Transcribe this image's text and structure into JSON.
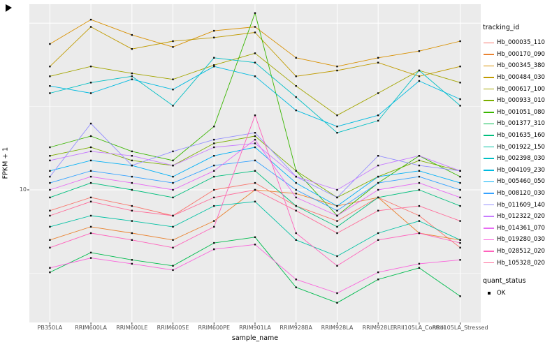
{
  "chart_data": {
    "type": "line",
    "title": "",
    "xlabel": "sample_name",
    "ylabel": "FPKM + 1",
    "yscale": "log10",
    "ylim": [
      1.6,
      130
    ],
    "ytick_values": [
      10
    ],
    "ytick_labels": [
      "10"
    ],
    "grid": {
      "major_y": [
        10,
        100
      ],
      "minor_y": [
        3.1623,
        31.623
      ],
      "color": "#FFFFFF"
    },
    "panel_bg": "#EBEBEB",
    "point_color": "#0d0d0d",
    "x": [
      "PB350LA",
      "RRIM600LA",
      "RRIM600LE",
      "RRIM600SE",
      "RRIM600PE",
      "RRIM901LA",
      "RRIM928BA",
      "RRIM928LA",
      "RRIM928LE",
      "RRII105LA_Control",
      "RRII105LA_Stressed"
    ],
    "series": [
      {
        "name": "Hb_000035_110",
        "color": "#F8766D",
        "values": [
          7.5,
          9,
          8,
          7,
          10,
          11,
          8,
          6.5,
          9,
          7,
          4.5
        ]
      },
      {
        "name": "Hb_000170_090",
        "color": "#EA8331",
        "values": [
          5,
          6,
          5.5,
          5,
          6.5,
          10,
          9.5,
          8,
          9,
          5.5,
          5
        ]
      },
      {
        "name": "Hb_000345_380",
        "color": "#D89000",
        "values": [
          75,
          105,
          85,
          72,
          90,
          95,
          62,
          55,
          62,
          68,
          78
        ]
      },
      {
        "name": "Hb_000484_030",
        "color": "#C09B00",
        "values": [
          55,
          95,
          70,
          78,
          82,
          88,
          48,
          52,
          58,
          48,
          55
        ]
      },
      {
        "name": "Hb_000617_100",
        "color": "#A3A500",
        "values": [
          48,
          55,
          50,
          46,
          56,
          66,
          42,
          28,
          38,
          52,
          44
        ]
      },
      {
        "name": "Hb_000933_010",
        "color": "#7CAE00",
        "values": [
          16,
          18,
          15,
          14,
          19,
          21,
          13,
          9,
          12,
          15,
          13
        ]
      },
      {
        "name": "Hb_001051_080",
        "color": "#39B600",
        "values": [
          18,
          21,
          17,
          15,
          24,
          115,
          13,
          7,
          11,
          16,
          12
        ]
      },
      {
        "name": "Hb_001377_310",
        "color": "#00BB4E",
        "values": [
          3.2,
          4.2,
          3.8,
          3.5,
          4.8,
          5.2,
          2.6,
          2.1,
          2.9,
          3.4,
          2.3
        ]
      },
      {
        "name": "Hb_001635_160",
        "color": "#00BF7D",
        "values": [
          9,
          11,
          10,
          9,
          12,
          13,
          8,
          6,
          9,
          10,
          8
        ]
      },
      {
        "name": "Hb_001922_150",
        "color": "#00C1A3",
        "values": [
          6,
          7,
          6.5,
          6,
          8,
          8.5,
          5,
          4,
          5.5,
          6.5,
          5
        ]
      },
      {
        "name": "Hb_002398_030",
        "color": "#00BFC4",
        "values": [
          38,
          44,
          48,
          32,
          62,
          58,
          36,
          22,
          26,
          52,
          32
        ]
      },
      {
        "name": "Hb_004109_230",
        "color": "#00BAE0",
        "values": [
          42,
          38,
          46,
          40,
          55,
          48,
          30,
          24,
          28,
          45,
          35
        ]
      },
      {
        "name": "Hb_005460_050",
        "color": "#00B0F6",
        "values": [
          13,
          15,
          14,
          12,
          16,
          18,
          11,
          8,
          12,
          13,
          11
        ]
      },
      {
        "name": "Hb_008120_030",
        "color": "#35A2FF",
        "values": [
          11,
          13,
          12,
          11,
          14,
          15,
          10,
          7.5,
          11,
          12,
          10
        ]
      },
      {
        "name": "Hb_011609_140",
        "color": "#9590FF",
        "values": [
          12,
          25,
          14,
          17,
          20,
          22,
          12,
          9,
          16,
          14,
          13
        ]
      },
      {
        "name": "Hb_012322_020",
        "color": "#C77CFF",
        "values": [
          15,
          17,
          16,
          14,
          18,
          19,
          12,
          10,
          14,
          16,
          13
        ]
      },
      {
        "name": "Hb_014361_070",
        "color": "#E76BF3",
        "values": [
          10,
          12,
          11,
          10,
          13,
          20,
          9,
          7,
          10,
          11,
          9
        ]
      },
      {
        "name": "Hb_019280_030",
        "color": "#FA62DB",
        "values": [
          3.4,
          3.9,
          3.6,
          3.3,
          4.4,
          4.7,
          2.9,
          2.4,
          3.2,
          3.6,
          3.8
        ]
      },
      {
        "name": "Hb_028512_020",
        "color": "#FF62BC",
        "values": [
          4.5,
          5.5,
          5,
          4.5,
          6,
          28,
          5.5,
          3.5,
          5,
          5.5,
          4.8
        ]
      },
      {
        "name": "Hb_105328_020",
        "color": "#FF6A98",
        "values": [
          7,
          8.5,
          7.5,
          7,
          9,
          10,
          7.5,
          5.5,
          7.5,
          8,
          6.5
        ]
      }
    ],
    "legend": {
      "title": "tracking_id",
      "quant_title": "quant_status",
      "quant_items": [
        "OK"
      ]
    }
  }
}
